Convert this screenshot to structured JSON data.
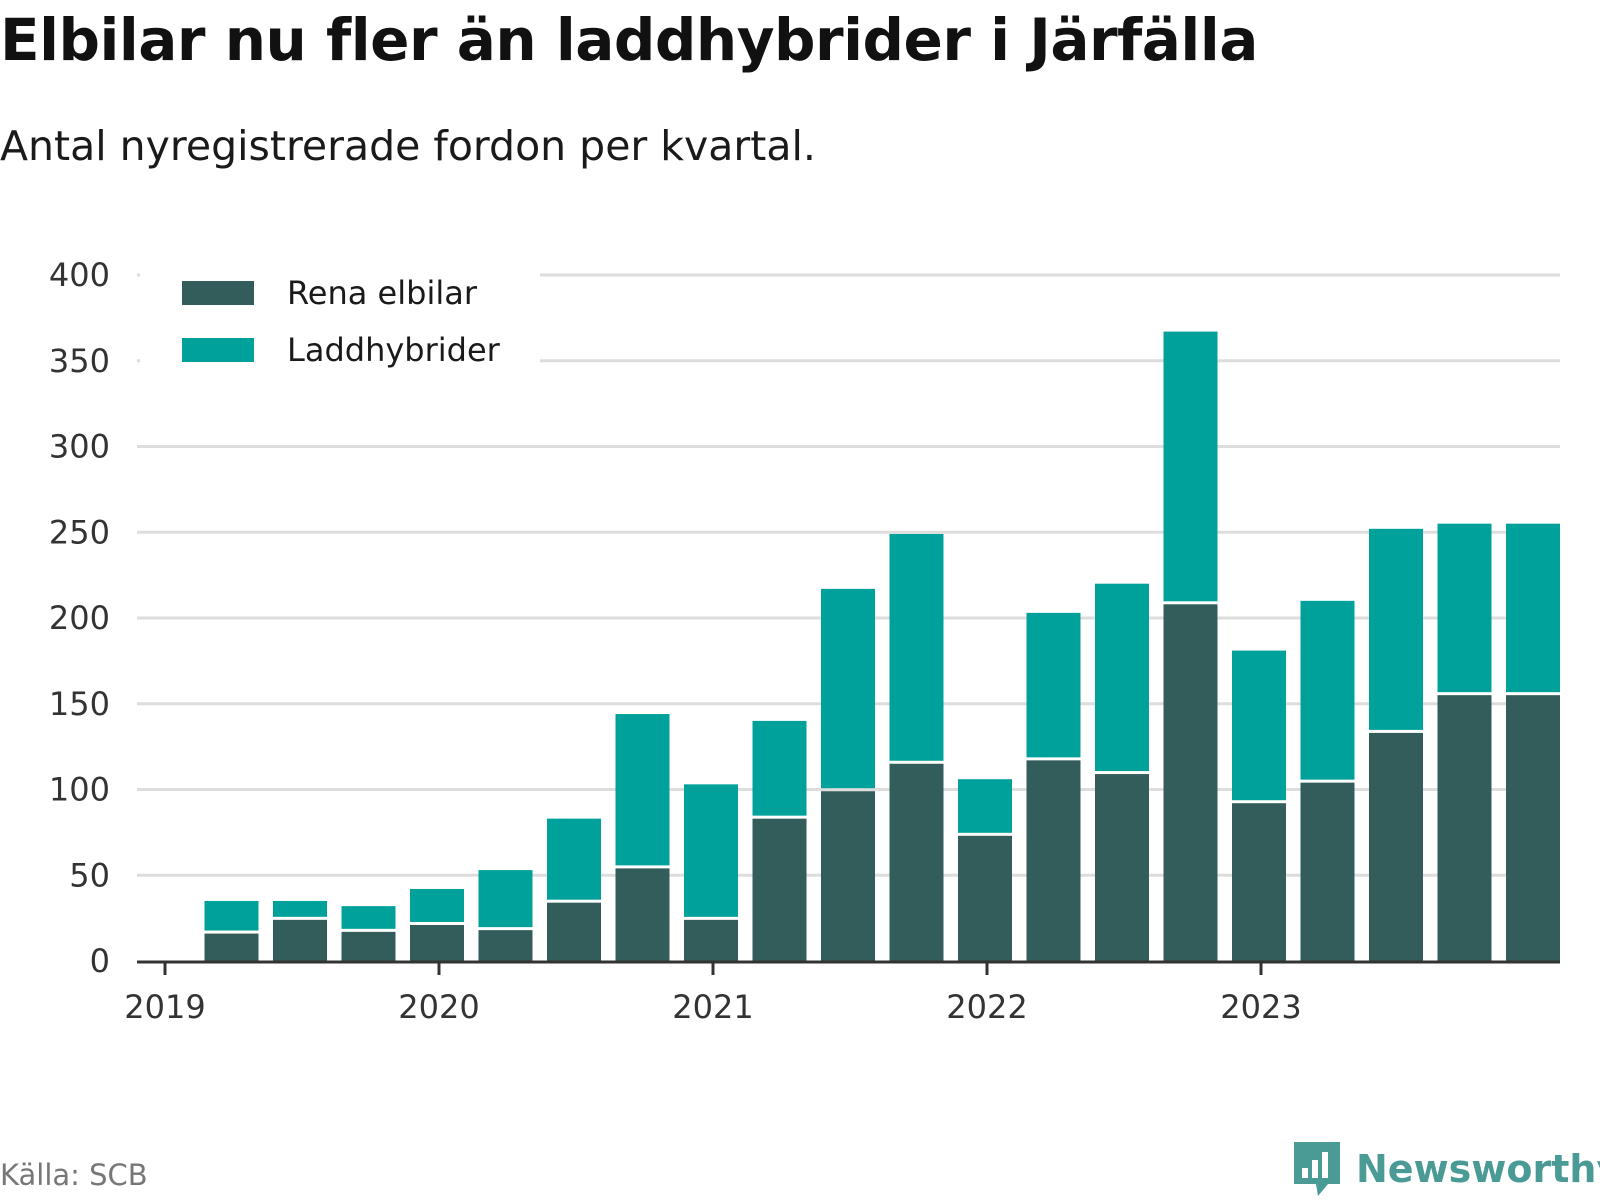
{
  "header": {
    "title": "Elbilar nu fler än laddhybrider i Järfälla",
    "subtitle": "Antal nyregistrerade fordon per kvartal."
  },
  "footer": {
    "source": "Källa: SCB",
    "brand": "Newsworthy"
  },
  "colors": {
    "rena": "#335d5a",
    "ladd": "#00a19a",
    "grid": "#dddddd",
    "axis": "#333333",
    "brand": "#4a9a95"
  },
  "chart_data": {
    "type": "bar",
    "stacked": true,
    "title": "Elbilar nu fler än laddhybrider i Järfälla",
    "subtitle": "Antal nyregistrerade fordon per kvartal.",
    "xlabel": "",
    "ylabel": "",
    "ylim": [
      0,
      400
    ],
    "yticks": [
      0,
      50,
      100,
      150,
      200,
      250,
      300,
      350,
      400
    ],
    "xticks": [
      "2019",
      "2020",
      "2021",
      "2022",
      "2023"
    ],
    "categories": [
      "2019 Q1",
      "2019 Q2",
      "2019 Q3",
      "2019 Q4",
      "2020 Q1",
      "2020 Q2",
      "2020 Q3",
      "2020 Q4",
      "2021 Q1",
      "2021 Q2",
      "2021 Q3",
      "2021 Q4",
      "2022 Q1",
      "2022 Q2",
      "2022 Q3",
      "2022 Q4",
      "2023 Q1",
      "2023 Q2",
      "2023 Q3",
      "2023 Q4"
    ],
    "series": [
      {
        "name": "Rena elbilar",
        "values": [
          16,
          24,
          17,
          21,
          18,
          34,
          54,
          24,
          83,
          99,
          115,
          73,
          117,
          109,
          208,
          92,
          104,
          133,
          155,
          155
        ]
      },
      {
        "name": "Laddhybrider",
        "values": [
          19,
          11,
          15,
          21,
          35,
          49,
          90,
          79,
          57,
          118,
          134,
          33,
          86,
          111,
          159,
          89,
          106,
          119,
          100,
          100
        ]
      }
    ],
    "legend": {
      "position": "top-left",
      "entries": [
        "Rena elbilar",
        "Laddhybrider"
      ]
    },
    "grid": true
  }
}
